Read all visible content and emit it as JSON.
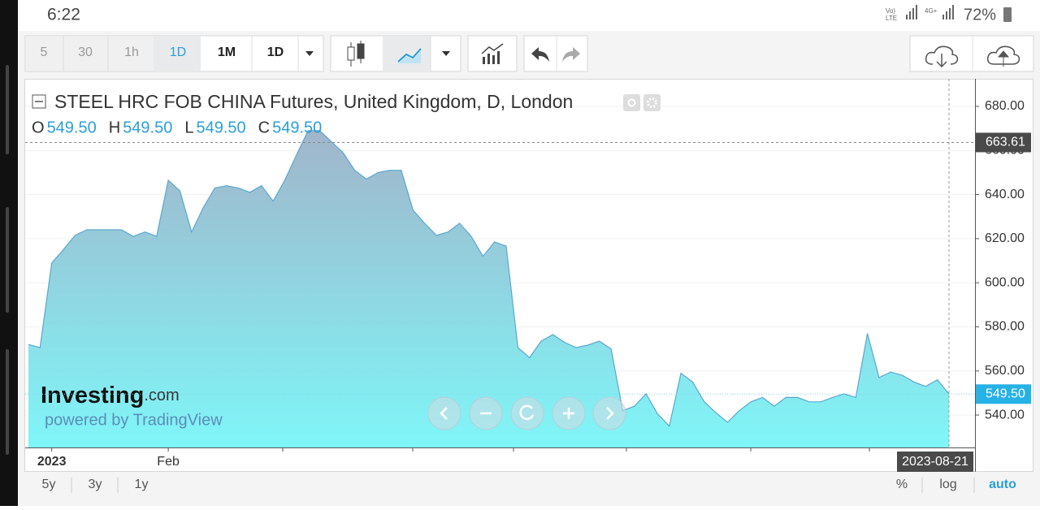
{
  "status_bar": {
    "time": "6:22",
    "battery": "72%"
  },
  "toolbar": {
    "intervals": [
      "5",
      "30",
      "1h",
      "1D",
      "1M",
      "1D"
    ]
  },
  "chart_data": {
    "type": "area",
    "title": "STEEL HRC FOB CHINA Futures, United Kingdom, D, London",
    "ohlc": [
      {
        "name": "O",
        "text": "549.50"
      },
      {
        "name": "H",
        "text": "549.50"
      },
      {
        "name": "L",
        "text": "549.50"
      },
      {
        "name": "C",
        "text": "549.50"
      }
    ],
    "categories": [
      null,
      null,
      "2023",
      null,
      null,
      null,
      null,
      null,
      null,
      null,
      null,
      null,
      "Feb",
      null,
      null,
      null,
      null,
      null,
      null,
      null,
      null,
      null,
      null,
      null,
      null,
      null,
      null,
      null,
      null,
      null,
      null,
      null,
      null,
      null,
      null,
      null,
      null,
      null,
      null,
      null,
      null,
      null,
      null,
      null,
      null,
      null,
      null,
      null,
      null,
      null,
      null,
      null,
      null,
      null,
      null,
      null,
      null,
      null,
      null,
      null,
      null,
      null,
      null,
      null,
      null,
      null,
      null,
      null,
      null,
      null,
      null,
      null,
      null,
      null,
      null,
      null,
      null,
      null,
      null,
      "2023-08-21"
    ],
    "values": [
      572,
      570.6,
      609,
      615,
      621.5,
      624,
      624,
      624,
      624,
      621,
      623,
      621,
      646.5,
      641.7,
      623,
      634,
      643,
      644,
      643,
      641,
      644,
      637,
      646.5,
      658,
      669,
      669,
      664,
      659,
      651,
      647,
      650,
      651,
      651,
      633,
      627,
      621.5,
      623,
      627,
      621,
      612,
      618.5,
      616.6,
      570.6,
      566,
      573.5,
      576.5,
      573,
      570.6,
      571.7,
      573.5,
      570,
      542,
      544,
      549.6,
      540.4,
      535,
      559,
      555,
      546,
      541,
      536.7,
      542,
      546,
      548,
      544,
      548,
      548,
      546,
      546,
      548,
      549.6,
      548,
      577,
      557,
      559.5,
      558,
      555,
      553,
      556,
      549.5
    ],
    "color": "#5aa7cf",
    "ylim": [
      525.3,
      692.5
    ],
    "yticks": [
      {
        "value": 540,
        "label": "540.00"
      },
      {
        "value": 560,
        "label": "560.00"
      },
      {
        "value": 580,
        "label": "580.00"
      },
      {
        "value": 600,
        "label": "600.00"
      },
      {
        "value": 620,
        "label": "620.00"
      },
      {
        "value": 640,
        "label": "640.00"
      },
      {
        "value": 660,
        "label": "660.00"
      },
      {
        "value": 680,
        "label": "680.00"
      }
    ],
    "grid": true,
    "crosshair": {
      "value": 663.61,
      "label": "663.61"
    },
    "last_price": {
      "value": 549.5,
      "label": "549.50"
    }
  },
  "watermark": {
    "brand": "Investing",
    "suffix": ".com",
    "powered_by": "powered by TradingView"
  },
  "range_buttons": [
    "5y",
    "3y",
    "1y"
  ],
  "scale_buttons": [
    "%",
    "log",
    "auto"
  ]
}
